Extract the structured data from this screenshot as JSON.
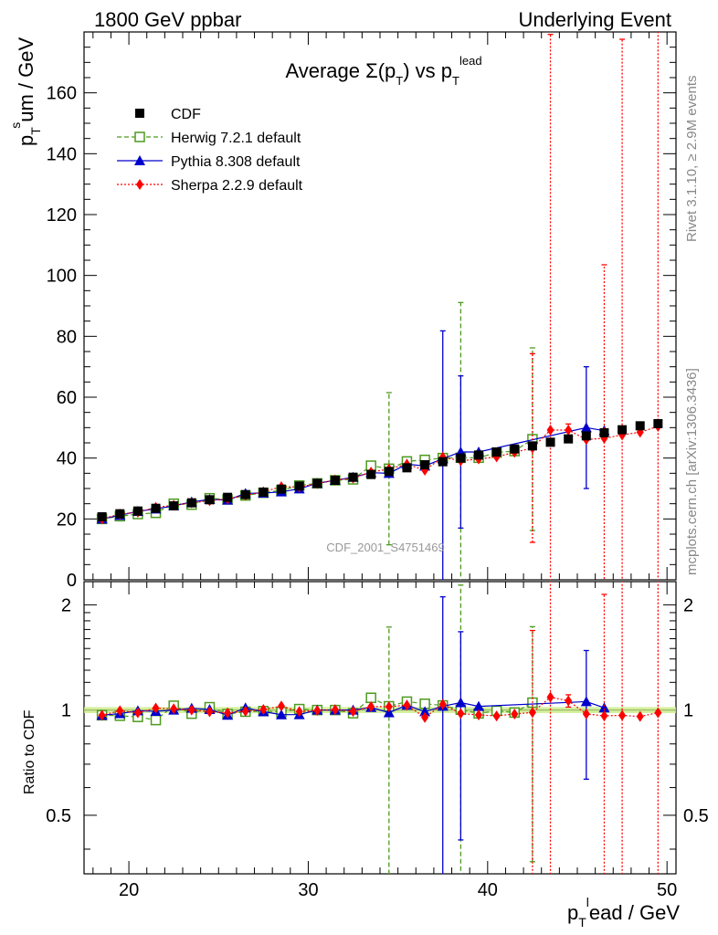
{
  "header": {
    "left": "1800 GeV ppbar",
    "right": "Underlying Event"
  },
  "side_labels": {
    "rivet": "Rivet 3.1.10, ≥ 2.9M events",
    "mcplots": "mcplots.cern.ch [arXiv:1306.3436]"
  },
  "watermark": "CDF_2001_S4751469",
  "chart_data": {
    "type": "scatter",
    "title": "Average Σ(pT) vs pT^lead",
    "xlabel": "pT^lead / GeV",
    "ylabel": "pT^sum / GeV",
    "ratio_ylabel": "Ratio to CDF",
    "xlim": [
      17.5,
      50.5
    ],
    "ylim": [
      0,
      180
    ],
    "ratio_ylim": [
      0.34,
      2.33
    ],
    "x_ticks": [
      20,
      30,
      40,
      50
    ],
    "y_ticks": [
      0,
      20,
      40,
      60,
      80,
      100,
      120,
      140,
      160
    ],
    "ratio_ticks": [
      "0.5",
      "1",
      "2"
    ],
    "legend_position": "top-left",
    "x": [
      18.5,
      19.5,
      20.5,
      21.5,
      22.5,
      23.5,
      24.5,
      25.5,
      26.5,
      27.5,
      28.5,
      29.5,
      30.5,
      31.5,
      32.5,
      33.5,
      34.5,
      35.5,
      36.5,
      37.5,
      38.5,
      39.5,
      40.5,
      41.5,
      42.5,
      43.5,
      44.5,
      45.5,
      46.5,
      47.5,
      48.5,
      49.5
    ],
    "series": [
      {
        "name": "CDF",
        "color": "#000000",
        "marker": "square-filled",
        "values": [
          20.7,
          21.7,
          22.6,
          23.5,
          24.3,
          25.3,
          26.3,
          27.1,
          28.0,
          28.8,
          29.8,
          30.8,
          31.7,
          32.7,
          33.7,
          34.6,
          35.6,
          36.8,
          37.8,
          38.8,
          40.0,
          41.0,
          42.0,
          43.0,
          44.0,
          45.2,
          46.3,
          47.3,
          48.3,
          49.3,
          50.6,
          51.3
        ]
      },
      {
        "name": "Herwig 7.2.1 default",
        "color": "#4d9a1f",
        "marker": "square-open",
        "line": "dashed",
        "values": [
          20.0,
          20.9,
          21.6,
          22.0,
          25.0,
          24.7,
          26.8,
          26.4,
          27.7,
          28.6,
          29.4,
          31.0,
          31.7,
          32.7,
          33.0,
          37.5,
          36.5,
          38.9,
          39.4,
          40.0,
          40.1,
          40.1,
          41.8,
          42.3,
          46.2
        ],
        "errors": [
          0.5,
          0.5,
          0.5,
          0.5,
          0.5,
          0.5,
          0.5,
          0.5,
          0.5,
          0.5,
          0.5,
          0.5,
          0.5,
          0.5,
          0.5,
          0.5,
          25.0,
          0.5,
          0.5,
          0.5,
          51.0,
          0.5,
          0.5,
          0.5,
          30.0
        ]
      },
      {
        "name": "Pythia 8.308 default",
        "color": "#0000cc",
        "marker": "triangle-filled",
        "line": "solid",
        "values": [
          20.0,
          21.2,
          22.5,
          23.3,
          24.3,
          25.6,
          26.4,
          26.2,
          28.4,
          28.5,
          28.9,
          29.9,
          31.7,
          32.7,
          33.7,
          35.2,
          35.0,
          38.0,
          37.4,
          39.8,
          42.0,
          42.0,
          null,
          null,
          null,
          null,
          null,
          50.0,
          49.0
        ],
        "errors": [
          0.5,
          0.5,
          0.5,
          0.5,
          0.5,
          0.5,
          0.5,
          0.5,
          0.5,
          0.5,
          0.5,
          0.5,
          0.5,
          0.5,
          0.5,
          0.5,
          0.5,
          0.5,
          0.5,
          42.0,
          25.0,
          0.5,
          null,
          null,
          null,
          null,
          null,
          20.0,
          0.5
        ]
      },
      {
        "name": "Sherpa 2.2.9 default",
        "color": "#ff0000",
        "marker": "diamond-filled",
        "line": "dotted",
        "values": [
          20.0,
          21.6,
          22.2,
          23.8,
          24.5,
          25.3,
          26.0,
          26.6,
          27.8,
          28.9,
          30.6,
          30.5,
          31.6,
          32.8,
          33.4,
          35.4,
          36.4,
          38.0,
          36.0,
          40.3,
          39.1,
          39.7,
          40.4,
          41.9,
          43.3,
          49.2,
          49.2,
          46.1,
          46.5,
          47.6,
          48.5,
          50.4
        ],
        "errors": [
          0.5,
          0.5,
          0.5,
          0.5,
          0.5,
          0.5,
          0.5,
          0.5,
          0.5,
          0.5,
          0.5,
          0.5,
          0.5,
          0.5,
          0.5,
          0.5,
          0.5,
          0.5,
          0.5,
          0.5,
          0.5,
          0.5,
          0.5,
          0.5,
          31.0,
          130.0,
          2.0,
          0.5,
          57.0,
          130.0,
          0.5,
          130.0
        ]
      }
    ],
    "ratio_band_color": "#ccee88"
  }
}
